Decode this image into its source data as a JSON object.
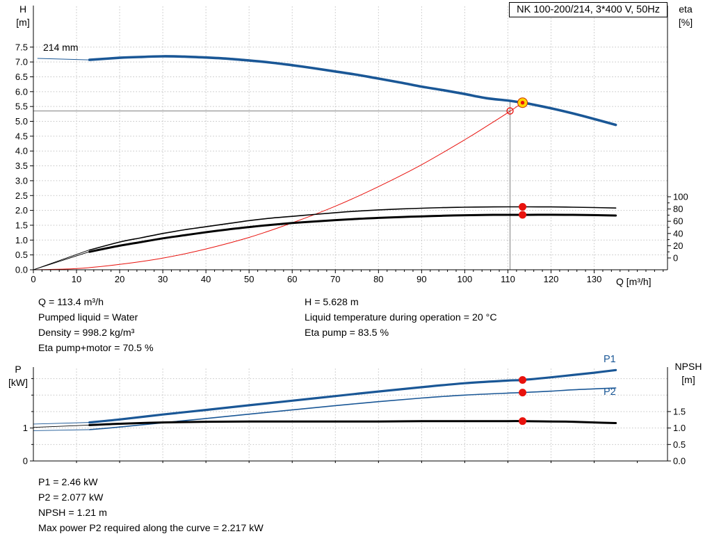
{
  "title_box": "NK 100-200/214, 3*400 V, 50Hz",
  "top_chart": {
    "y_axis_name": "H",
    "y_axis_unit": "[m]",
    "y2_axis_name": "eta",
    "y2_axis_unit": "[%]",
    "x_axis_label": "Q [m³/h]",
    "impeller_label": "214 mm"
  },
  "bottom_chart": {
    "y_axis_name": "P",
    "y_axis_unit": "[kW]",
    "y2_axis_name": "NPSH",
    "y2_axis_unit": "[m]",
    "p1_label": "P1",
    "p2_label": "P2"
  },
  "info_block": {
    "q": "Q = 113.4 m³/h",
    "pumped_liquid": "Pumped liquid = Water",
    "density": "Density = 998.2 kg/m³",
    "eta_pump_motor": "Eta pump+motor = 70.5 %",
    "h": "H = 5.628 m",
    "liquid_temp": "Liquid temperature during operation = 20 °C",
    "eta_pump": "Eta pump = 83.5 %"
  },
  "result_block": {
    "p1": "P1 = 2.46 kW",
    "p2": "P2 = 2.077 kW",
    "npsh": "NPSH = 1.21 m",
    "max_p2": "Max power P2 required along the curve = 2.217 kW"
  },
  "colors": {
    "curve_blue": "#1a5796",
    "marker_red": "#e8120d",
    "duty_yellow": "#ffd400",
    "grid": "#c2c2c2",
    "crosshair": "#7f7f7f"
  },
  "chart_data": [
    {
      "id": "hq",
      "type": "line",
      "title": "NK 100-200/214, 3*400 V, 50Hz",
      "xlabel": "Q [m³/h]",
      "ylabel": "H [m]",
      "y2label": "eta [%]",
      "xlim": [
        0,
        147
      ],
      "ylim": [
        0,
        8.9
      ],
      "y2lim": [
        0,
        100
      ],
      "grid_on": true,
      "x_ticks": [
        {
          "v": 0,
          "label": "0"
        },
        {
          "v": 10,
          "label": "10"
        },
        {
          "v": 20,
          "label": "20"
        },
        {
          "v": 30,
          "label": "30"
        },
        {
          "v": 40,
          "label": "40"
        },
        {
          "v": 50,
          "label": "50"
        },
        {
          "v": 60,
          "label": "60"
        },
        {
          "v": 70,
          "label": "70"
        },
        {
          "v": 80,
          "label": "80"
        },
        {
          "v": 90,
          "label": "90"
        },
        {
          "v": 100,
          "label": "100"
        },
        {
          "v": 110,
          "label": "110"
        },
        {
          "v": 120,
          "label": "120"
        },
        {
          "v": 130,
          "label": "130"
        }
      ],
      "y_ticks": [
        {
          "v": 0,
          "label": "0.0"
        },
        {
          "v": 0.5,
          "label": "0.5"
        },
        {
          "v": 1,
          "label": "1.0"
        },
        {
          "v": 1.5,
          "label": "1.5"
        },
        {
          "v": 2,
          "label": "2.0"
        },
        {
          "v": 2.5,
          "label": "2.5"
        },
        {
          "v": 3,
          "label": "3.0"
        },
        {
          "v": 3.5,
          "label": "3.5"
        },
        {
          "v": 4,
          "label": "4.0"
        },
        {
          "v": 4.5,
          "label": "4.5"
        },
        {
          "v": 5,
          "label": "5.0"
        },
        {
          "v": 5.5,
          "label": "5.5"
        },
        {
          "v": 6,
          "label": "6.0"
        },
        {
          "v": 6.5,
          "label": "6.5"
        },
        {
          "v": 7,
          "label": "7.0"
        },
        {
          "v": 7.5,
          "label": "7.5"
        }
      ],
      "y2_ticks": [
        {
          "v": 0,
          "label": "0"
        },
        {
          "v": 20,
          "label": "20"
        },
        {
          "v": 40,
          "label": "40"
        },
        {
          "v": 60,
          "label": "60"
        },
        {
          "v": 80,
          "label": "80"
        },
        {
          "v": 100,
          "label": "100"
        }
      ],
      "y2_minor": [
        10,
        30,
        50,
        70,
        90
      ],
      "grid": {
        "v": [
          10,
          20,
          30,
          40,
          50,
          60,
          70,
          80,
          90,
          100,
          110,
          120,
          130
        ],
        "h": [
          0.5,
          1,
          1.5,
          2,
          2.5,
          3,
          3.5,
          4,
          4.5,
          5,
          5.5,
          6,
          6.5,
          7,
          7.5
        ]
      },
      "crosshair": {
        "q": 110.5,
        "h": 5.35,
        "v_top": 5.7
      },
      "series": [
        {
          "name": "pump-curve-leader",
          "axis": "y",
          "color": "#1a5796",
          "width": 1,
          "smooth": false,
          "points": [
            [
              1,
              7.12
            ],
            [
              13,
              7.07
            ]
          ]
        },
        {
          "name": "system-curve",
          "axis": "y",
          "color": "#e8120d",
          "width": 1,
          "smooth": true,
          "points": [
            [
              0,
              0
            ],
            [
              10,
              0.04
            ],
            [
              20,
              0.18
            ],
            [
              30,
              0.39
            ],
            [
              40,
              0.7
            ],
            [
              50,
              1.09
            ],
            [
              60,
              1.58
            ],
            [
              70,
              2.14
            ],
            [
              80,
              2.8
            ],
            [
              90,
              3.54
            ],
            [
              100,
              4.38
            ],
            [
              105,
              4.83
            ],
            [
              110,
              5.29
            ],
            [
              113.4,
              5.63
            ]
          ]
        },
        {
          "name": "eta-pump-leader",
          "axis": "y",
          "color": "#000000",
          "width": 0.9,
          "smooth": false,
          "points": [
            [
              0,
              0
            ],
            [
              13,
              0.67
            ]
          ]
        },
        {
          "name": "eta-pump-motor-leader",
          "axis": "y",
          "color": "#000000",
          "width": 0.9,
          "smooth": false,
          "points": [
            [
              0,
              0
            ],
            [
              13,
              0.61
            ]
          ]
        },
        {
          "name": "eta-pump-curve",
          "axis": "y2",
          "color": "#000000",
          "width": 1.6,
          "smooth": true,
          "points": [
            [
              13,
              13
            ],
            [
              20,
              26
            ],
            [
              25,
              33
            ],
            [
              30,
              40
            ],
            [
              35,
              46
            ],
            [
              40,
              51
            ],
            [
              45,
              56
            ],
            [
              50,
              61
            ],
            [
              55,
              65
            ],
            [
              60,
              68
            ],
            [
              65,
              71
            ],
            [
              70,
              74
            ],
            [
              75,
              76.5
            ],
            [
              80,
              78.5
            ],
            [
              85,
              80
            ],
            [
              90,
              81.3
            ],
            [
              95,
              82.3
            ],
            [
              100,
              82.9
            ],
            [
              105,
              83.3
            ],
            [
              110,
              83.5
            ],
            [
              113.4,
              83.5
            ],
            [
              120,
              83.4
            ],
            [
              125,
              83
            ],
            [
              130,
              82.4
            ],
            [
              135,
              81.6
            ]
          ]
        },
        {
          "name": "eta-pump-motor-curve",
          "axis": "y2",
          "color": "#000000",
          "width": 3,
          "smooth": true,
          "points": [
            [
              13,
              10
            ],
            [
              20,
              20
            ],
            [
              25,
              26
            ],
            [
              30,
              32
            ],
            [
              35,
              37
            ],
            [
              40,
              42
            ],
            [
              45,
              46.5
            ],
            [
              50,
              50.5
            ],
            [
              55,
              54
            ],
            [
              60,
              57
            ],
            [
              65,
              59.5
            ],
            [
              70,
              61.8
            ],
            [
              75,
              63.8
            ],
            [
              80,
              65.4
            ],
            [
              85,
              66.8
            ],
            [
              90,
              68
            ],
            [
              95,
              69
            ],
            [
              100,
              69.8
            ],
            [
              105,
              70.3
            ],
            [
              110,
              70.5
            ],
            [
              113.4,
              70.5
            ],
            [
              120,
              70.6
            ],
            [
              125,
              70.4
            ],
            [
              130,
              70
            ],
            [
              135,
              69.3
            ]
          ]
        },
        {
          "name": "pump-curve-214mm",
          "axis": "y",
          "color": "#1a5796",
          "width": 3.6,
          "smooth": true,
          "points": [
            [
              13,
              7.07
            ],
            [
              20,
              7.14
            ],
            [
              25,
              7.17
            ],
            [
              30,
              7.19
            ],
            [
              35,
              7.18
            ],
            [
              40,
              7.15
            ],
            [
              45,
              7.11
            ],
            [
              50,
              7.05
            ],
            [
              55,
              6.98
            ],
            [
              60,
              6.89
            ],
            [
              65,
              6.79
            ],
            [
              70,
              6.68
            ],
            [
              75,
              6.57
            ],
            [
              80,
              6.44
            ],
            [
              85,
              6.31
            ],
            [
              90,
              6.17
            ],
            [
              95,
              6.05
            ],
            [
              100,
              5.92
            ],
            [
              105,
              5.78
            ],
            [
              110,
              5.7
            ],
            [
              113.4,
              5.628
            ],
            [
              115,
              5.59
            ],
            [
              120,
              5.44
            ],
            [
              125,
              5.27
            ],
            [
              130,
              5.08
            ],
            [
              135,
              4.88
            ]
          ]
        }
      ],
      "markers": [
        {
          "name": "requested-duty-point",
          "q": 110.5,
          "v": 5.35,
          "axis": "y",
          "type": "open"
        },
        {
          "name": "eta-pump-duty-dot",
          "q": 113.4,
          "v": 83.5,
          "axis": "y2",
          "type": "dot"
        },
        {
          "name": "eta-pump-motor-duty-dot",
          "q": 113.4,
          "v": 70.5,
          "axis": "y2",
          "type": "dot"
        },
        {
          "name": "duty-point",
          "q": 113.4,
          "v": 5.628,
          "axis": "y",
          "type": "duty"
        }
      ]
    },
    {
      "id": "pq",
      "type": "line",
      "title": "Power and NPSH curves",
      "xlabel": "Q [m³/h]",
      "ylabel": "P [kW]",
      "y2label": "NPSH [m]",
      "xlim": [
        0,
        147
      ],
      "ylim": [
        0,
        2.85
      ],
      "y2lim": [
        0,
        2.85
      ],
      "grid_on": true,
      "x_ticks": [],
      "y_ticks": [
        {
          "v": 0,
          "label": "0"
        },
        {
          "v": 1,
          "label": "1"
        }
      ],
      "y_minor": [
        0.5,
        1.5,
        2,
        2.5
      ],
      "y2_ticks": [
        {
          "v": 0,
          "label": "0.0"
        },
        {
          "v": 0.5,
          "label": "0.5"
        },
        {
          "v": 1,
          "label": "1.0"
        },
        {
          "v": 1.5,
          "label": "1.5"
        }
      ],
      "grid": {
        "v": [
          10,
          20,
          30,
          40,
          50,
          60,
          70,
          80,
          90,
          100,
          110,
          120,
          130
        ],
        "h": [
          0.5,
          1,
          1.5,
          2,
          2.5
        ]
      },
      "series": [
        {
          "name": "p1-leader",
          "axis": "y",
          "color": "#1a5796",
          "width": 0.9,
          "smooth": false,
          "points": [
            [
              0,
              1.12
            ],
            [
              13,
              1.17
            ]
          ]
        },
        {
          "name": "p2-leader",
          "axis": "y",
          "color": "#1a5796",
          "width": 0.9,
          "smooth": false,
          "points": [
            [
              0,
              0.92
            ],
            [
              13,
              0.95
            ]
          ]
        },
        {
          "name": "npsh-leader",
          "axis": "y2",
          "color": "#000000",
          "width": 0.9,
          "smooth": false,
          "points": [
            [
              0,
              1.02
            ],
            [
              13,
              1.09
            ]
          ]
        },
        {
          "name": "p2-curve",
          "axis": "y",
          "color": "#1a5796",
          "width": 1.6,
          "smooth": true,
          "points": [
            [
              13,
              0.95
            ],
            [
              20,
              1.03
            ],
            [
              30,
              1.16
            ],
            [
              40,
              1.29
            ],
            [
              50,
              1.42
            ],
            [
              60,
              1.55
            ],
            [
              70,
              1.68
            ],
            [
              80,
              1.8
            ],
            [
              90,
              1.91
            ],
            [
              100,
              2
            ],
            [
              110,
              2.06
            ],
            [
              113.4,
              2.077
            ],
            [
              120,
              2.12
            ],
            [
              125,
              2.16
            ],
            [
              130,
              2.19
            ],
            [
              135,
              2.217
            ]
          ]
        },
        {
          "name": "p1-curve",
          "axis": "y",
          "color": "#1a5796",
          "width": 3.2,
          "smooth": true,
          "points": [
            [
              13,
              1.17
            ],
            [
              20,
              1.26
            ],
            [
              30,
              1.41
            ],
            [
              40,
              1.55
            ],
            [
              50,
              1.69
            ],
            [
              60,
              1.83
            ],
            [
              70,
              1.97
            ],
            [
              80,
              2.11
            ],
            [
              90,
              2.24
            ],
            [
              100,
              2.36
            ],
            [
              110,
              2.44
            ],
            [
              113.4,
              2.46
            ],
            [
              120,
              2.54
            ],
            [
              125,
              2.61
            ],
            [
              130,
              2.68
            ],
            [
              135,
              2.76
            ]
          ]
        },
        {
          "name": "npsh-curve",
          "axis": "y2",
          "color": "#000000",
          "width": 3,
          "smooth": true,
          "points": [
            [
              13,
              1.09
            ],
            [
              20,
              1.13
            ],
            [
              30,
              1.17
            ],
            [
              40,
              1.19
            ],
            [
              50,
              1.2
            ],
            [
              60,
              1.2
            ],
            [
              70,
              1.2
            ],
            [
              80,
              1.2
            ],
            [
              90,
              1.21
            ],
            [
              100,
              1.21
            ],
            [
              110,
              1.21
            ],
            [
              113.4,
              1.21
            ],
            [
              120,
              1.2
            ],
            [
              125,
              1.19
            ],
            [
              130,
              1.17
            ],
            [
              135,
              1.15
            ]
          ]
        }
      ],
      "markers": [
        {
          "name": "p1-duty-dot",
          "q": 113.4,
          "v": 2.46,
          "axis": "y",
          "type": "dot"
        },
        {
          "name": "p2-duty-dot",
          "q": 113.4,
          "v": 2.077,
          "axis": "y",
          "type": "dot"
        },
        {
          "name": "npsh-duty-dot",
          "q": 113.4,
          "v": 1.21,
          "axis": "y2",
          "type": "dot"
        }
      ]
    }
  ]
}
